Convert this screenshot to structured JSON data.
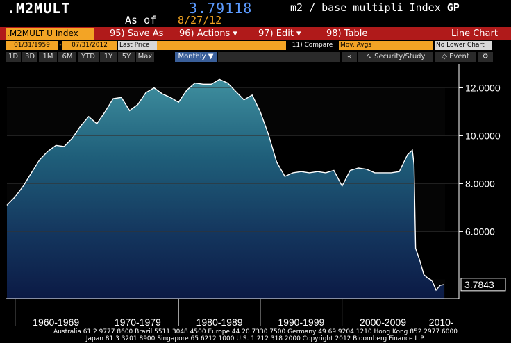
{
  "header": {
    "ticker": ".M2MULT",
    "value": "3.79118",
    "desc_main": "m2 / base multipli  Index",
    "desc_bold": "GP",
    "asof_label": "As of",
    "asof_date": "8/27/12"
  },
  "toolbar": {
    "index_field": ".M2MULT U Index",
    "save_as": "95) Save As",
    "actions": "96) Actions ▾",
    "edit": "97) Edit ▾",
    "table": "98) Table",
    "chart_type": "Line Chart"
  },
  "range_row": {
    "start_date": "01/31/1959",
    "end_date": "07/31/2012",
    "field": "Last Price",
    "compare": "11) Compare",
    "mov_avgs": "Mov. Avgs",
    "lower_chart": "No Lower Chart"
  },
  "period_row": {
    "buttons": [
      "1D",
      "3D",
      "1M",
      "6M",
      "YTD",
      "1Y",
      "5Y",
      "Max"
    ],
    "frequency": "Monthly ▼",
    "security_study": "Security/Study",
    "event": "Event",
    "collapse_glyph": "«",
    "settings_glyph": "⚙"
  },
  "chart_data": {
    "type": "area",
    "title": "",
    "ylim": [
      3.2,
      13.0
    ],
    "yticks": [
      "12.0000",
      "10.0000",
      "8.0000",
      "6.0000"
    ],
    "last_value_label": "3.7843",
    "xlim": [
      1959.0,
      2012.6
    ],
    "x_tick_labels": [
      "1960-1969",
      "1970-1979",
      "1980-1989",
      "1990-1999",
      "2000-2009",
      "2010-"
    ],
    "x": [
      1959.0,
      1960.0,
      1961.0,
      1962.0,
      1963.0,
      1964.0,
      1965.0,
      1966.0,
      1967.0,
      1968.0,
      1969.0,
      1970.0,
      1971.0,
      1972.0,
      1973.0,
      1974.0,
      1975.0,
      1976.0,
      1977.0,
      1978.0,
      1979.0,
      1980.0,
      1981.0,
      1982.0,
      1983.0,
      1984.0,
      1985.0,
      1986.0,
      1987.0,
      1988.0,
      1989.0,
      1990.0,
      1991.0,
      1992.0,
      1993.0,
      1994.0,
      1995.0,
      1996.0,
      1997.0,
      1998.0,
      1999.0,
      2000.0,
      2001.0,
      2002.0,
      2003.0,
      2004.0,
      2005.0,
      2006.0,
      2007.0,
      2008.0,
      2008.6,
      2008.8,
      2009.0,
      2009.5,
      2010.0,
      2010.5,
      2011.0,
      2011.5,
      2012.0,
      2012.5
    ],
    "values": [
      7.1,
      7.45,
      7.9,
      8.45,
      9.0,
      9.35,
      9.6,
      9.55,
      9.9,
      10.4,
      10.8,
      10.5,
      11.0,
      11.55,
      11.6,
      11.05,
      11.3,
      11.8,
      12.0,
      11.75,
      11.6,
      11.4,
      11.9,
      12.2,
      12.15,
      12.15,
      12.35,
      12.2,
      11.85,
      11.5,
      11.7,
      11.0,
      10.05,
      8.9,
      8.3,
      8.45,
      8.5,
      8.45,
      8.5,
      8.45,
      8.55,
      7.9,
      8.55,
      8.65,
      8.6,
      8.45,
      8.45,
      8.45,
      8.5,
      9.2,
      9.4,
      8.8,
      5.3,
      4.8,
      4.2,
      4.05,
      3.95,
      3.55,
      3.75,
      3.78
    ]
  },
  "footer": {
    "line1": "Australia 61 2 9777 8600 Brazil 5511 3048 4500 Europe 44 20 7330 7500 Germany 49 69 9204 1210 Hong Kong 852 2977 6000",
    "line2": "Japan 81 3 3201 8900        Singapore 65 6212 1000        U.S. 1 212 318 2000        Copyright 2012 Bloomberg Finance L.P."
  }
}
